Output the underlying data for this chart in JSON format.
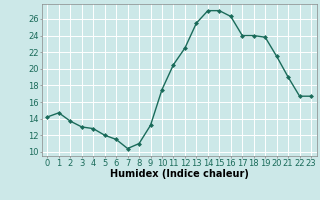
{
  "x": [
    0,
    1,
    2,
    3,
    4,
    5,
    6,
    7,
    8,
    9,
    10,
    11,
    12,
    13,
    14,
    15,
    16,
    17,
    18,
    19,
    20,
    21,
    22,
    23
  ],
  "y": [
    14.2,
    14.7,
    13.7,
    13.0,
    12.8,
    12.0,
    11.5,
    10.4,
    11.0,
    13.2,
    17.5,
    20.5,
    22.5,
    25.5,
    27.0,
    27.0,
    26.3,
    24.0,
    24.0,
    23.8,
    21.5,
    19.0,
    16.7,
    16.7
  ],
  "line_color": "#1a6b5a",
  "marker": "D",
  "markersize": 2.0,
  "linewidth": 1.0,
  "bg_color": "#cce8e8",
  "grid_color": "#ffffff",
  "xlabel": "Humidex (Indice chaleur)",
  "xlabel_fontsize": 7,
  "tick_fontsize": 6,
  "ylim": [
    9.5,
    27.8
  ],
  "yticks": [
    10,
    12,
    14,
    16,
    18,
    20,
    22,
    24,
    26
  ],
  "xticks": [
    0,
    1,
    2,
    3,
    4,
    5,
    6,
    7,
    8,
    9,
    10,
    11,
    12,
    13,
    14,
    15,
    16,
    17,
    18,
    19,
    20,
    21,
    22,
    23
  ],
  "xlim": [
    -0.5,
    23.5
  ]
}
